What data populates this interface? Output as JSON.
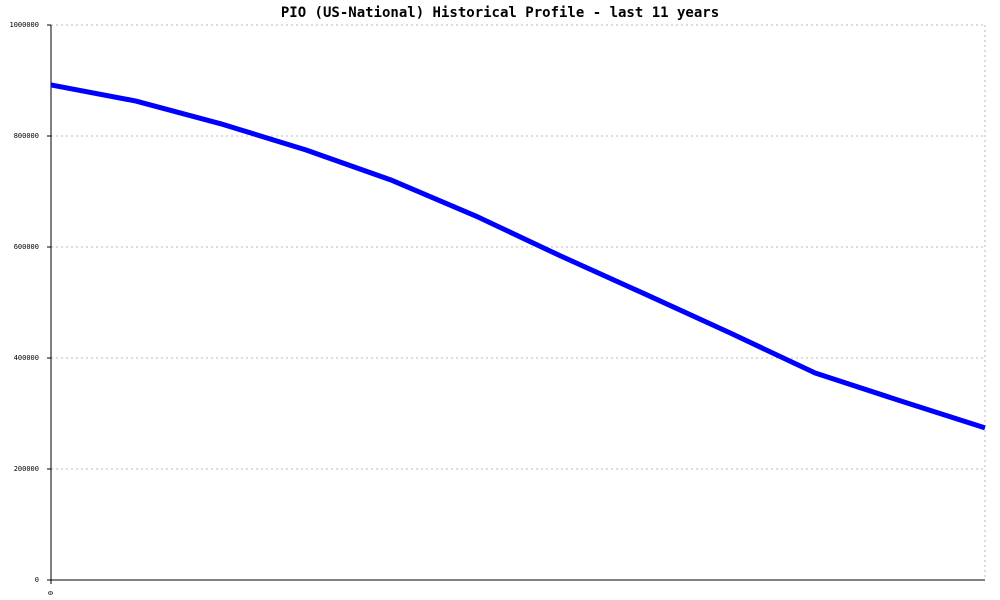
{
  "chart_data": {
    "type": "line",
    "title": "PIO (US-National) Historical Profile - last 11 years",
    "categories": [
      "0",
      null,
      null,
      null,
      null,
      null,
      null,
      null,
      null,
      null,
      null,
      null
    ],
    "series": [
      {
        "name": "PIO",
        "color": "#0000ff",
        "values": [
          892000,
          863000,
          822000,
          775000,
          721000,
          656000,
          584000,
          515000,
          445000,
          373000,
          323000,
          274000
        ]
      }
    ],
    "ylim": [
      0,
      1000000
    ],
    "yticks": [
      0,
      200000,
      400000,
      600000,
      800000,
      1000000
    ],
    "grid": true
  }
}
